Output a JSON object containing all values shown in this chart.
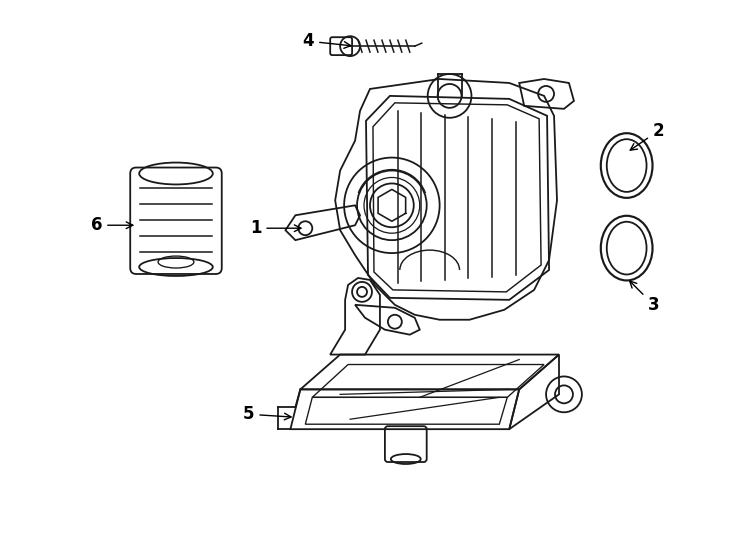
{
  "background_color": "#ffffff",
  "line_color": "#1a1a1a",
  "label_color": "#000000"
}
